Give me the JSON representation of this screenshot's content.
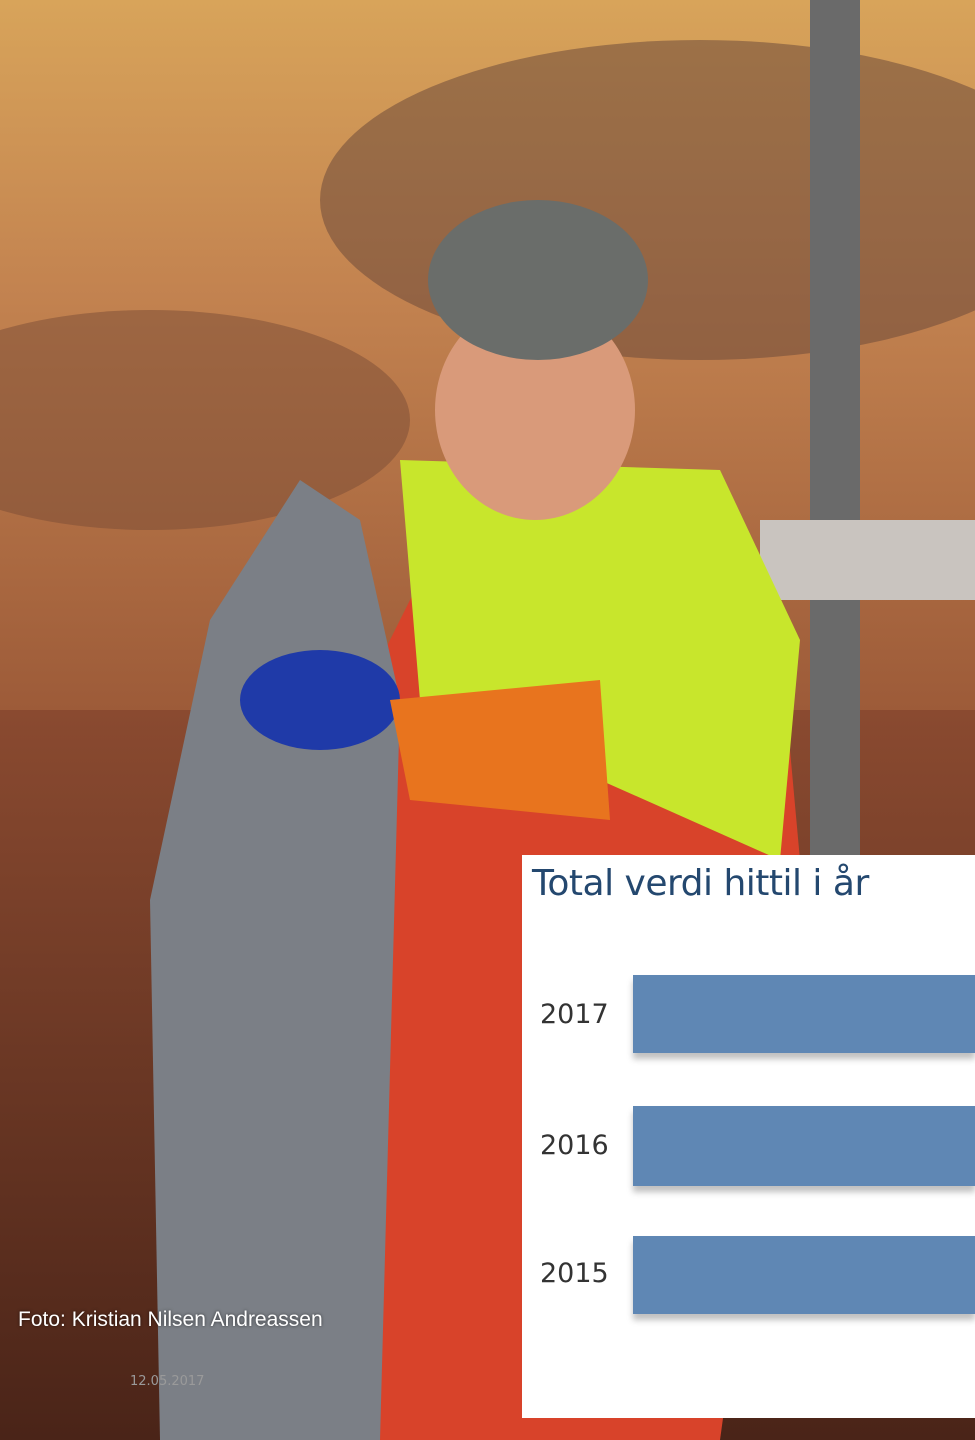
{
  "photo": {
    "credit": "Foto: Kristian Nilsen Andreassen",
    "date": "12.05.2017"
  },
  "inset": {
    "title": "Total verdi hittil i år",
    "rows": [
      "2017",
      "2016",
      "2015"
    ]
  }
}
